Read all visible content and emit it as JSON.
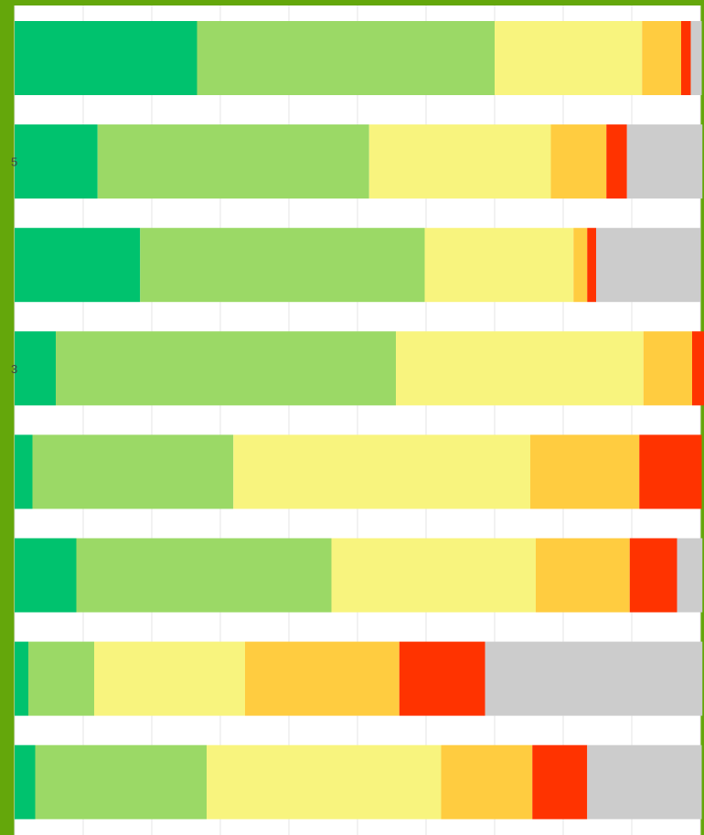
{
  "chart_data": {
    "type": "bar",
    "orientation": "horizontal",
    "stacked": true,
    "title": "",
    "xlabel": "",
    "ylabel": "",
    "grid": true,
    "legend": "none",
    "xlim": [
      0,
      100
    ],
    "row_labels": [
      "",
      "5",
      "",
      "3",
      "",
      "",
      "",
      ""
    ],
    "series": [
      {
        "color": "#00c26e",
        "values": [
          26.6,
          12.1,
          18.3,
          6.0,
          2.6,
          9.0,
          2.0,
          3.0
        ]
      },
      {
        "color": "#9bd966",
        "values": [
          43.4,
          39.6,
          41.5,
          49.6,
          29.3,
          37.2,
          9.6,
          25.0
        ]
      },
      {
        "color": "#f8f47e",
        "values": [
          21.5,
          26.5,
          21.7,
          36.1,
          43.3,
          29.8,
          22.0,
          34.2
        ]
      },
      {
        "color": "#ffcc40",
        "values": [
          5.7,
          8.1,
          2.0,
          7.1,
          15.9,
          13.7,
          22.5,
          13.3
        ]
      },
      {
        "color": "#ff3300",
        "values": [
          1.4,
          3.0,
          1.3,
          1.8,
          9.1,
          6.9,
          12.5,
          8.0
        ]
      },
      {
        "color": "#cccccc",
        "values": [
          1.6,
          11.0,
          15.2,
          0.0,
          0.0,
          3.7,
          31.7,
          16.7
        ]
      }
    ]
  }
}
